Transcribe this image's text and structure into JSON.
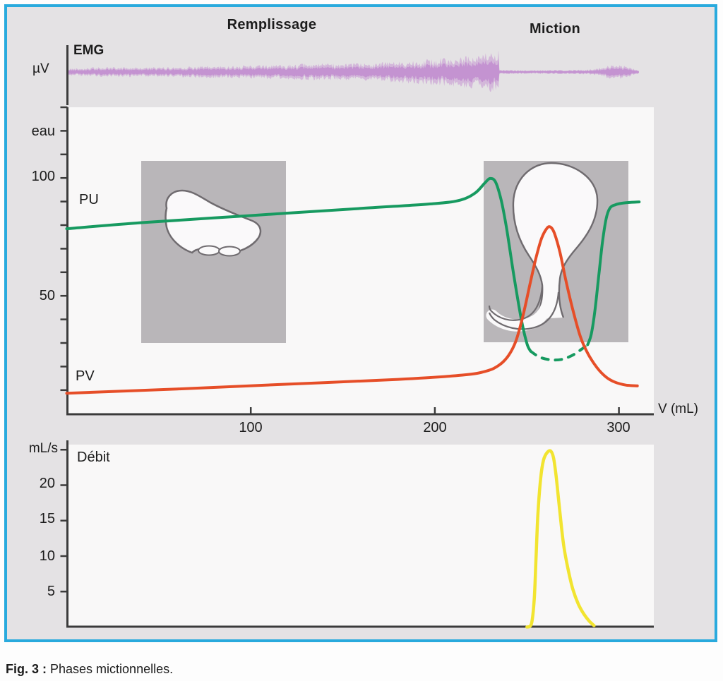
{
  "labels": {
    "remplissage": "Remplissage",
    "miction": "Miction",
    "caption_bold": "Fig. 3 :",
    "caption_rest": "Phases mictionnelles."
  },
  "colors": {
    "frame_border": "#29aadd",
    "background": "#e4e2e4",
    "panel": "#f9f8f8",
    "inset_box": "#b9b6b9",
    "emg_trace": "#c9a0d4",
    "pu_green": "#179a60",
    "pv_red": "#e64e28",
    "flow_yellow": "#f2e430",
    "axis": "#3b3b3b"
  },
  "chart_data": [
    {
      "id": "emg",
      "type": "area",
      "label": "EMG",
      "unit": "µV",
      "description": "Pelvic floor EMG: amplitude increases progressively during Remplissage (filling), becomes nearly silent during Miction (voiding), with a brief burst at the end.",
      "envelope_t_amp": [
        [
          0,
          5
        ],
        [
          0.05,
          6.5
        ],
        [
          0.1,
          7
        ],
        [
          0.16,
          6.5
        ],
        [
          0.22,
          8
        ],
        [
          0.28,
          8.5
        ],
        [
          0.33,
          9.5
        ],
        [
          0.4,
          11
        ],
        [
          0.46,
          12
        ],
        [
          0.5,
          11.5
        ],
        [
          0.56,
          14
        ],
        [
          0.62,
          17
        ],
        [
          0.67,
          20
        ],
        [
          0.71,
          23
        ],
        [
          0.735,
          26
        ],
        [
          0.753,
          30
        ],
        [
          0.7545,
          30
        ],
        [
          0.7555,
          3
        ],
        [
          0.8,
          2.6
        ],
        [
          0.85,
          2.8
        ],
        [
          0.9,
          3.2
        ],
        [
          0.925,
          4.5
        ],
        [
          0.945,
          9
        ],
        [
          0.958,
          11
        ],
        [
          0.972,
          10
        ],
        [
          0.985,
          6
        ],
        [
          0.996,
          3
        ],
        [
          1,
          2
        ]
      ]
    },
    {
      "id": "cystometry",
      "type": "line",
      "xlabel": "V (mL)",
      "ylabel": "eau",
      "xticks": [
        100,
        200,
        300
      ],
      "yticks": [
        50,
        100
      ],
      "xlim": [
        0,
        318
      ],
      "ylim": [
        0,
        128
      ],
      "grid": false,
      "series": [
        {
          "name": "PU",
          "color": "#179a60",
          "segments": [
            {
              "style": "solid",
              "points": [
                [
                  0,
                  78
                ],
                [
                  40,
                  80.5
                ],
                [
                  80,
                  82.5
                ],
                [
                  120,
                  84.5
                ],
                [
                  160,
                  86.5
                ],
                [
                  200,
                  88.5
                ],
                [
                  214,
                  90
                ],
                [
                  222,
                  93
                ],
                [
                  227,
                  97
                ],
                [
                  230,
                  99
                ],
                [
                  233,
                  97.5
                ],
                [
                  236,
                  90
                ],
                [
                  239,
                  78
                ],
                [
                  243,
                  58
                ],
                [
                  247,
                  40
                ],
                [
                  250,
                  30
                ],
                [
                  252,
                  26.8
                ]
              ]
            },
            {
              "style": "dashed",
              "points": [
                [
                  252,
                  26.8
                ],
                [
                  257,
                  24.3
                ],
                [
                  263,
                  23.2
                ],
                [
                  269,
                  23.4
                ],
                [
                  275,
                  25.2
                ],
                [
                  280,
                  27.8
                ],
                [
                  283,
                  29.5
                ]
              ]
            },
            {
              "style": "solid",
              "points": [
                [
                  283,
                  29.5
                ],
                [
                  285,
                  34
                ],
                [
                  287,
                  44
                ],
                [
                  289,
                  58
                ],
                [
                  291,
                  72
                ],
                [
                  293,
                  82
                ],
                [
                  295,
                  86.5
                ],
                [
                  298,
                  88
                ],
                [
                  303,
                  88.8
                ],
                [
                  311,
                  89.2
                ]
              ]
            }
          ]
        },
        {
          "name": "PV",
          "color": "#e64e28",
          "segments": [
            {
              "style": "solid",
              "points": [
                [
                  0,
                  9.2
                ],
                [
                  60,
                  11
                ],
                [
                  120,
                  13
                ],
                [
                  180,
                  15
                ],
                [
                  215,
                  16.8
                ],
                [
                  228,
                  18.5
                ],
                [
                  235,
                  21
                ],
                [
                  240,
                  25
                ],
                [
                  244,
                  31
                ],
                [
                  248,
                  42
                ],
                [
                  252,
                  56
                ],
                [
                  255,
                  66
                ],
                [
                  258,
                  74
                ],
                [
                  261,
                  78.3
                ],
                [
                  263,
                  78.6
                ],
                [
                  265,
                  76
                ],
                [
                  268,
                  68
                ],
                [
                  271,
                  57
                ],
                [
                  275,
                  44
                ],
                [
                  279,
                  33
                ],
                [
                  283,
                  26
                ],
                [
                  288,
                  20
                ],
                [
                  293,
                  16
                ],
                [
                  298,
                  13.8
                ],
                [
                  304,
                  12.6
                ],
                [
                  310,
                  12.3
                ]
              ]
            }
          ]
        }
      ]
    },
    {
      "id": "flow",
      "type": "line",
      "ylabel": "mL/s",
      "yticks": [
        5,
        10,
        15,
        20
      ],
      "ylim": [
        0,
        26
      ],
      "grid": false,
      "series": [
        {
          "name": "Débit",
          "color": "#f2e430",
          "segments": [
            {
              "style": "solid",
              "points": [
                [
                  250,
                  0
                ],
                [
                  252.5,
                  0.5
                ],
                [
                  254,
                  4
                ],
                [
                  255,
                  10
                ],
                [
                  256,
                  16
                ],
                [
                  257.5,
                  21
                ],
                [
                  259,
                  23.5
                ],
                [
                  261,
                  24.6
                ],
                [
                  263,
                  24.8
                ],
                [
                  264.5,
                  23.8
                ],
                [
                  266,
                  21
                ],
                [
                  268,
                  16
                ],
                [
                  270,
                  11.5
                ],
                [
                  272.5,
                  8
                ],
                [
                  275,
                  5.3
                ],
                [
                  278,
                  3.2
                ],
                [
                  281,
                  1.8
                ],
                [
                  284,
                  0.8
                ],
                [
                  286.5,
                  0.2
                ]
              ]
            }
          ]
        }
      ]
    }
  ]
}
